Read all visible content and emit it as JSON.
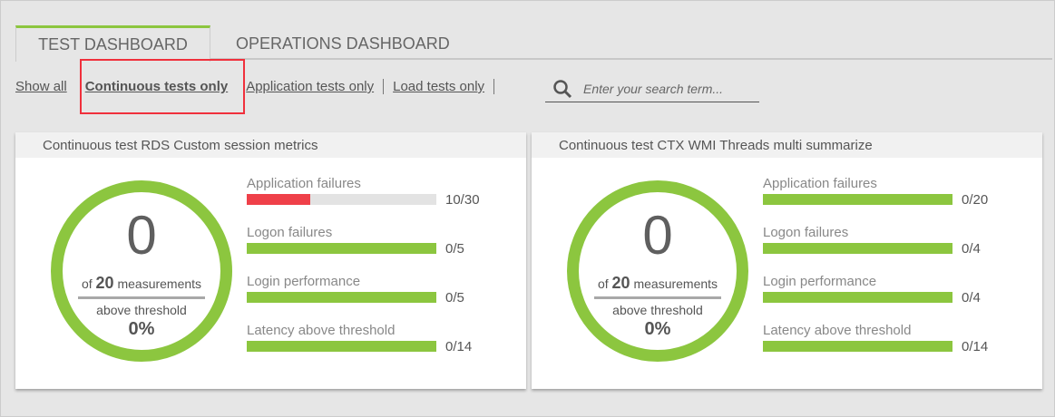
{
  "tabs": [
    {
      "label": "TEST DASHBOARD",
      "active": true
    },
    {
      "label": "OPERATIONS DASHBOARD",
      "active": false
    }
  ],
  "filters": [
    {
      "label": "Show all",
      "active": false
    },
    {
      "label": "Continuous tests only",
      "active": true
    },
    {
      "label": "Application tests only",
      "active": false
    },
    {
      "label": "Load tests only",
      "active": false
    }
  ],
  "search": {
    "placeholder": "Enter your search term...",
    "value": "",
    "icon": "search-icon"
  },
  "colors": {
    "accent": "#8cc63f",
    "failure": "#ef4049",
    "track": "#e3e3e3",
    "highlight": "#f0303c"
  },
  "cards": [
    {
      "title": "Continuous test RDS Custom session metrics",
      "count": "0",
      "of_prefix": "of",
      "total": "20",
      "measurements": "measurements",
      "above": "above threshold",
      "percent": "0%",
      "metrics": [
        {
          "label": "Application failures",
          "failed": 10,
          "total": 30,
          "value": "10/30"
        },
        {
          "label": "Logon failures",
          "failed": 0,
          "total": 5,
          "value": "0/5"
        },
        {
          "label": "Login performance",
          "failed": 0,
          "total": 5,
          "value": "0/5"
        },
        {
          "label": "Latency above threshold",
          "failed": 0,
          "total": 14,
          "value": "0/14"
        }
      ]
    },
    {
      "title": "Continuous test CTX WMI Threads multi summarize",
      "count": "0",
      "of_prefix": "of",
      "total": "20",
      "measurements": "measurements",
      "above": "above threshold",
      "percent": "0%",
      "metrics": [
        {
          "label": "Application failures",
          "failed": 0,
          "total": 20,
          "value": "0/20"
        },
        {
          "label": "Logon failures",
          "failed": 0,
          "total": 4,
          "value": "0/4"
        },
        {
          "label": "Login performance",
          "failed": 0,
          "total": 4,
          "value": "0/4"
        },
        {
          "label": "Latency above threshold",
          "failed": 0,
          "total": 14,
          "value": "0/14"
        }
      ]
    }
  ]
}
